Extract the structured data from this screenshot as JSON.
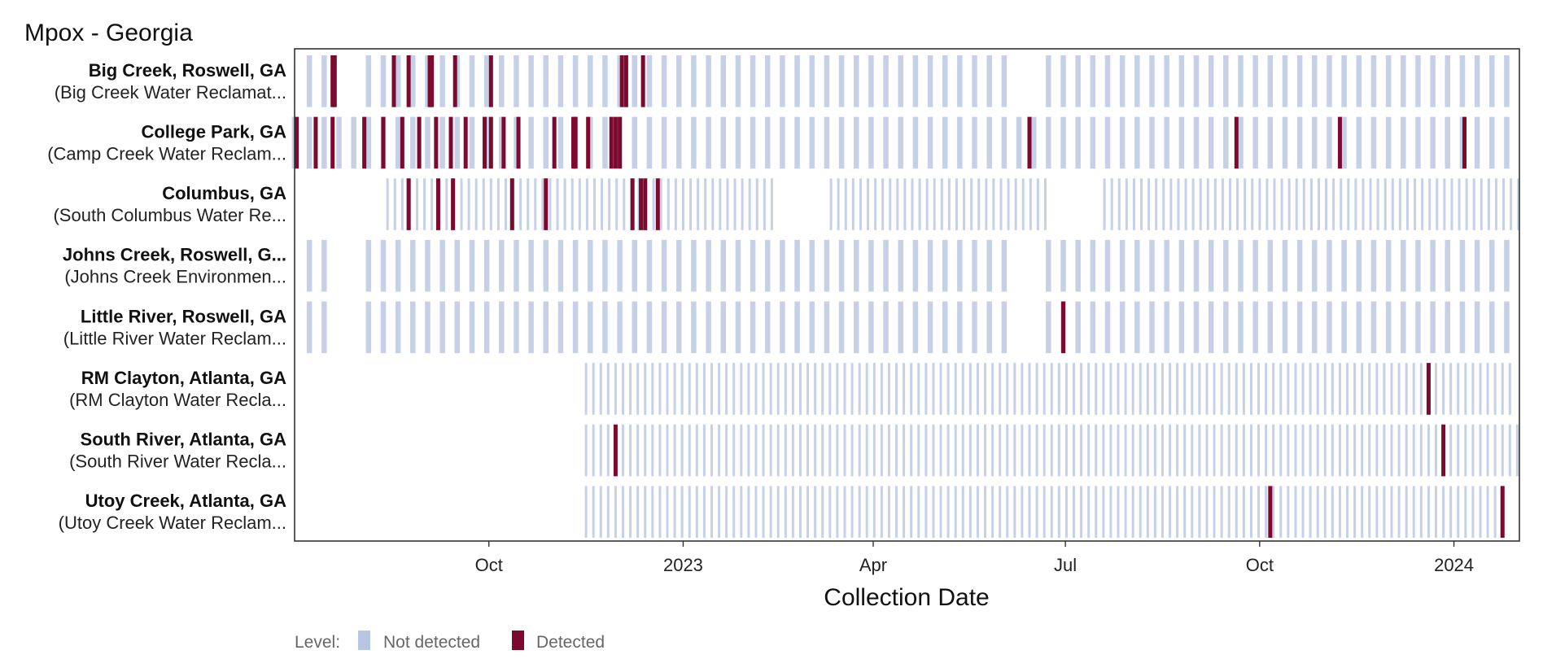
{
  "chart_data": {
    "type": "heatmap",
    "title": "Mpox - Georgia",
    "xlabel": "Collection Date",
    "ylabel": "",
    "x_range": [
      "2022-07-01",
      "2024-02-01"
    ],
    "x_ticks": [
      {
        "date": "2022-10-01",
        "label": "Oct"
      },
      {
        "date": "2023-01-01",
        "label": "2023"
      },
      {
        "date": "2023-04-01",
        "label": "Apr"
      },
      {
        "date": "2023-07-01",
        "label": "Jul"
      },
      {
        "date": "2023-10-01",
        "label": "Oct"
      },
      {
        "date": "2024-01-01",
        "label": "2024"
      }
    ],
    "grid": false,
    "legend": {
      "title": "Level:",
      "placement": "bottom-left",
      "items": [
        {
          "label": "Not detected",
          "color": "#b8c6e3"
        },
        {
          "label": "Detected",
          "color": "#7b0a2e"
        }
      ]
    },
    "colors": {
      "not_detected": "#c6d1e8",
      "detected": "#7b0a2e",
      "panel_border": "#333333"
    },
    "samples_per_week_note": "",
    "series": [
      {
        "name": "Big Creek, Roswell, GA",
        "subtitle": "(Big Creek Water Reclamat...",
        "cadence_days": 7,
        "start": "2022-07-08",
        "end": "2024-01-31",
        "gaps": [
          [
            "2022-07-21",
            "2022-08-02"
          ],
          [
            "2023-06-08",
            "2023-06-19"
          ]
        ],
        "detected": [
          "2022-07-19",
          "2022-07-20",
          "2022-08-17",
          "2022-08-24",
          "2022-09-03",
          "2022-09-04",
          "2022-09-15",
          "2022-10-02",
          "2022-12-03",
          "2022-12-05",
          "2022-12-13"
        ]
      },
      {
        "name": "College Park, GA",
        "subtitle": "(Camp Creek Water Reclam...",
        "cadence_days": 7,
        "start": "2022-07-01",
        "end": "2024-01-31",
        "gaps": [],
        "detected": [
          "2022-07-02",
          "2022-07-11",
          "2022-07-19",
          "2022-08-03",
          "2022-08-12",
          "2022-08-21",
          "2022-08-29",
          "2022-09-06",
          "2022-09-13",
          "2022-09-20",
          "2022-09-29",
          "2022-10-02",
          "2022-10-08",
          "2022-10-15",
          "2022-11-01",
          "2022-11-10",
          "2022-11-11",
          "2022-11-17",
          "2022-11-28",
          "2022-11-30",
          "2022-12-02",
          "2023-06-14",
          "2023-09-20",
          "2023-11-08",
          "2024-01-06"
        ]
      },
      {
        "name": "Columbus, GA",
        "subtitle": "(South Columbus Water Re...",
        "cadence_days": 3.5,
        "start": "2022-08-14",
        "end": "2024-02-01",
        "gaps": [
          [
            "2023-02-15",
            "2023-03-10"
          ],
          [
            "2023-06-22",
            "2023-07-18"
          ]
        ],
        "detected": [
          "2022-08-24",
          "2022-09-07",
          "2022-09-14",
          "2022-10-12",
          "2022-10-28",
          "2022-12-08",
          "2022-12-12",
          "2022-12-14",
          "2022-12-20"
        ]
      },
      {
        "name": "Johns Creek, Roswell, G...",
        "subtitle": "(Johns Creek Environmen...",
        "cadence_days": 7,
        "start": "2022-07-08",
        "end": "2024-01-31",
        "gaps": [
          [
            "2022-07-21",
            "2022-08-02"
          ],
          [
            "2023-06-08",
            "2023-06-19"
          ]
        ],
        "detected": []
      },
      {
        "name": "Little River, Roswell, GA",
        "subtitle": "(Little River Water Reclam...",
        "cadence_days": 7,
        "start": "2022-07-08",
        "end": "2024-01-31",
        "gaps": [
          [
            "2022-07-21",
            "2022-08-02"
          ],
          [
            "2023-06-08",
            "2023-06-19"
          ]
        ],
        "detected": [
          "2023-06-30"
        ]
      },
      {
        "name": "RM Clayton, Atlanta, GA",
        "subtitle": "(RM Clayton Water Recla...",
        "cadence_days": 3.5,
        "start": "2022-11-16",
        "end": "2024-01-29",
        "gaps": [],
        "detected": [
          "2023-12-20"
        ]
      },
      {
        "name": "South River, Atlanta, GA",
        "subtitle": "(South River Water Recla...",
        "cadence_days": 3.5,
        "start": "2022-11-16",
        "end": "2024-01-31",
        "gaps": [],
        "detected": [
          "2022-11-30",
          "2023-12-27"
        ]
      },
      {
        "name": "Utoy Creek, Atlanta, GA",
        "subtitle": "(Utoy Creek Water Reclam...",
        "cadence_days": 3.5,
        "start": "2022-11-16",
        "end": "2024-01-26",
        "gaps": [],
        "detected": [
          "2023-10-06",
          "2024-01-24"
        ]
      }
    ]
  }
}
